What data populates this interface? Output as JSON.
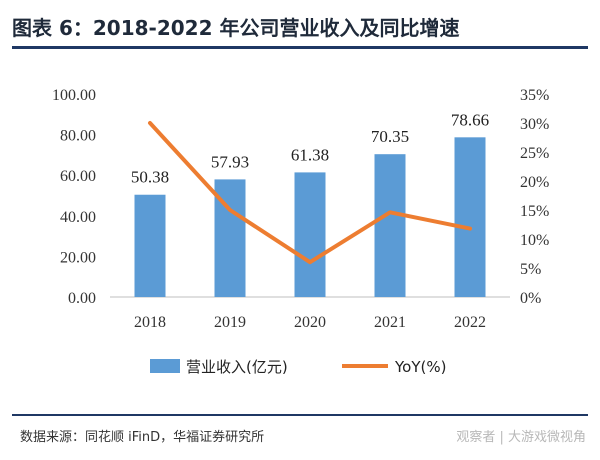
{
  "header": {
    "title": "图表 6：2018-2022 年公司营业收入及同比增速"
  },
  "footer": {
    "source": "数据来源：同花顺 iFinD，华福证券研究所",
    "watermark": "观察者 | 大游戏微视角"
  },
  "colors": {
    "bar": "#5b9bd5",
    "line": "#ed7d31",
    "rule": "#1f3864"
  },
  "chart_data": {
    "type": "bar",
    "categories": [
      "2018",
      "2019",
      "2020",
      "2021",
      "2022"
    ],
    "series": [
      {
        "name": "营业收入(亿元)",
        "type": "bar",
        "axis": "left",
        "values": [
          50.38,
          57.93,
          61.38,
          70.35,
          78.66
        ],
        "labels": [
          "50.38",
          "57.93",
          "61.38",
          "70.35",
          "78.66"
        ]
      },
      {
        "name": "YoY(%)",
        "type": "line",
        "axis": "right",
        "values": [
          30,
          15,
          6,
          14.6,
          11.8
        ]
      }
    ],
    "ylim": [
      0,
      100
    ],
    "y_ticks": [
      "0.00",
      "20.00",
      "40.00",
      "60.00",
      "80.00",
      "100.00"
    ],
    "y2lim": [
      0,
      35
    ],
    "y2_ticks": [
      "0%",
      "5%",
      "10%",
      "15%",
      "20%",
      "25%",
      "30%",
      "35%"
    ],
    "legend_position": "bottom",
    "grid": false
  }
}
